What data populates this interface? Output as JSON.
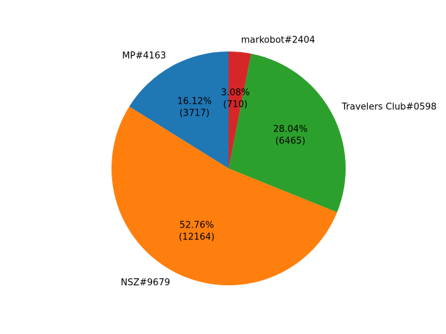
{
  "chart_data": {
    "type": "pie",
    "title": "",
    "start_angle_deg": 90,
    "direction": "counterclockwise",
    "slices": [
      {
        "label": "MP#4163",
        "value": 3717,
        "percent_text": "16.12%",
        "value_text": "(3717)",
        "color": "#1f77b4"
      },
      {
        "label": "NSZ#9679",
        "value": 12164,
        "percent_text": "52.76%",
        "value_text": "(12164)",
        "color": "#ff7f0e"
      },
      {
        "label": "Travelers Club#0598",
        "value": 6465,
        "percent_text": "28.04%",
        "value_text": "(6465)",
        "color": "#2ca02c"
      },
      {
        "label": "markobot#2404",
        "value": 710,
        "percent_text": "3.08%",
        "value_text": "(710)",
        "color": "#d62728"
      }
    ]
  }
}
